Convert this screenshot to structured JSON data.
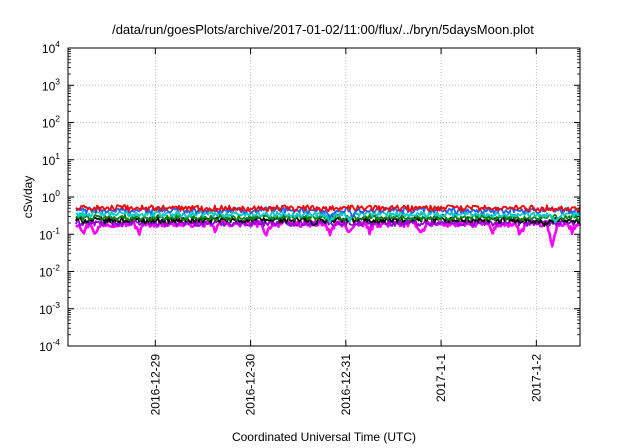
{
  "chart_data": {
    "type": "line",
    "title": "/data/run/goesPlots/archive/2017-01-02/11:00/flux/../bryn/5daysMoon.plot",
    "xlabel": "Coordinated Universal Time (UTC)",
    "ylabel": "cSv/day",
    "yscale": "log",
    "ylim": [
      0.0001,
      10000
    ],
    "y_ticks": [
      {
        "base": "10",
        "exp": "-4"
      },
      {
        "base": "10",
        "exp": "-3"
      },
      {
        "base": "10",
        "exp": "-2"
      },
      {
        "base": "10",
        "exp": "-1"
      },
      {
        "base": "10",
        "exp": "0"
      },
      {
        "base": "10",
        "exp": "1"
      },
      {
        "base": "10",
        "exp": "2"
      },
      {
        "base": "10",
        "exp": "3"
      },
      {
        "base": "10",
        "exp": "4"
      }
    ],
    "xlim": [
      "2016-12-28T02:00",
      "2017-01-02T11:00"
    ],
    "x_ticks": [
      {
        "label": "2016-12-29",
        "t": "2016-12-29T00:00"
      },
      {
        "label": "2016-12-30",
        "t": "2016-12-30T00:00"
      },
      {
        "label": "2016-12-31",
        "t": "2016-12-31T00:00"
      },
      {
        "label": "2017-1-1",
        "t": "2017-01-01T00:00"
      },
      {
        "label": "2017-1-2",
        "t": "2017-01-02T00:00"
      }
    ],
    "grid": true,
    "legend": "none",
    "series": [
      {
        "color": "#ff00ff",
        "typical": 0.19,
        "dips": [
          {
            "t": "2016-12-28T06:00",
            "v": 0.12
          },
          {
            "t": "2016-12-28T09:00",
            "v": 0.1
          },
          {
            "t": "2016-12-28T20:00",
            "v": 0.11
          },
          {
            "t": "2016-12-29T15:00",
            "v": 0.13
          },
          {
            "t": "2016-12-30T04:00",
            "v": 0.1
          },
          {
            "t": "2016-12-30T20:00",
            "v": 0.1
          },
          {
            "t": "2016-12-31T01:00",
            "v": 0.11
          },
          {
            "t": "2016-12-31T06:00",
            "v": 0.12
          },
          {
            "t": "2016-12-31T19:00",
            "v": 0.11
          },
          {
            "t": "2017-01-01T13:00",
            "v": 0.11
          },
          {
            "t": "2017-01-01T20:00",
            "v": 0.1
          },
          {
            "t": "2017-01-02T04:00",
            "v": 0.045
          },
          {
            "t": "2017-01-02T09:00",
            "v": 0.12
          }
        ]
      },
      {
        "color": "#9400d3",
        "typical": 0.2,
        "dips": []
      },
      {
        "color": "#000000",
        "typical": 0.24,
        "dips": [
          {
            "t": "2016-12-30T16:00",
            "v": 0.17
          },
          {
            "t": "2017-01-02T02:00",
            "v": 0.16
          }
        ]
      },
      {
        "color": "#008000",
        "typical": 0.28,
        "dips": []
      },
      {
        "color": "#00c8c8",
        "typical": 0.35,
        "dips": [
          {
            "t": "2016-12-30T20:00",
            "v": 0.22
          },
          {
            "t": "2016-12-31T01:00",
            "v": 0.25
          },
          {
            "t": "2017-01-02T05:00",
            "v": 0.21
          }
        ]
      },
      {
        "color": "#1e64ff",
        "typical": 0.44,
        "dips": [
          {
            "t": "2016-12-30T20:00",
            "v": 0.28
          },
          {
            "t": "2016-12-31T02:00",
            "v": 0.3
          }
        ]
      },
      {
        "color": "#ff0000",
        "typical": 0.5,
        "dips": []
      }
    ]
  }
}
